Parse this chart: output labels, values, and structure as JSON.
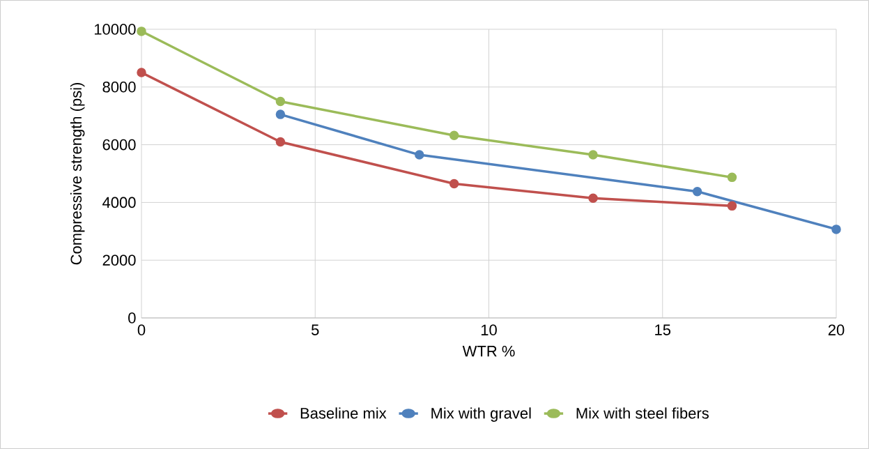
{
  "chart_data": {
    "type": "line",
    "xlabel": "WTR %",
    "ylabel": "Compressive strength (psi)",
    "xlim": [
      0,
      20
    ],
    "xticks": [
      0,
      5,
      10,
      15,
      20
    ],
    "ylim": [
      0,
      10000
    ],
    "yticks": [
      0,
      2000,
      4000,
      6000,
      8000,
      10000
    ],
    "grid": true,
    "legend": "bottom",
    "marker": "circle",
    "line_style": "solid",
    "series": [
      {
        "name": "Baseline mix",
        "color": "#c0504d",
        "x": [
          0,
          4,
          9,
          13,
          17
        ],
        "values": [
          8500,
          6100,
          4650,
          4150,
          3880
        ]
      },
      {
        "name": "Mix with gravel",
        "color": "#4f81bd",
        "x": [
          4,
          8,
          16,
          20
        ],
        "values": [
          7050,
          5650,
          4380,
          3070
        ]
      },
      {
        "name": "Mix with steel fibers",
        "color": "#9bbb59",
        "x": [
          0,
          4,
          9,
          13,
          17
        ],
        "values": [
          9930,
          7500,
          6320,
          5650,
          4870
        ]
      }
    ]
  }
}
